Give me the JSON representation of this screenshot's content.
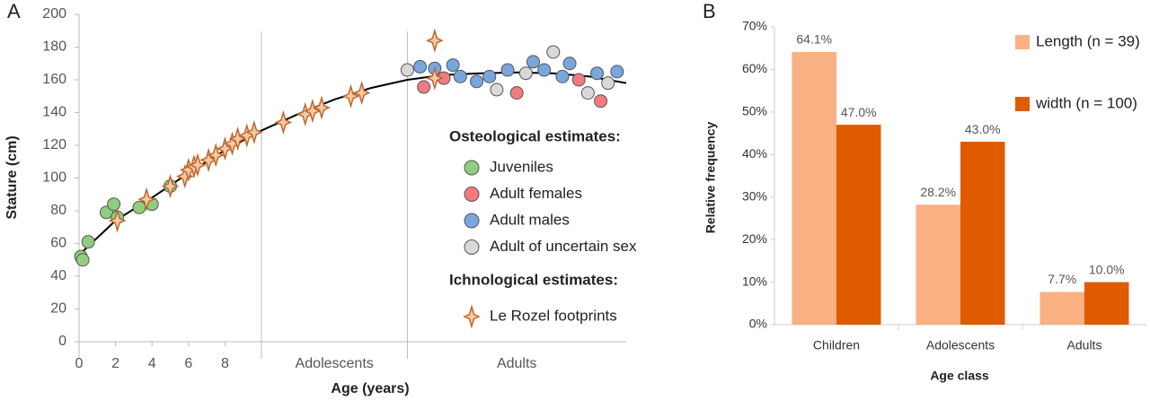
{
  "chart_data": [
    {
      "type": "scatter",
      "panel": "A",
      "xlabel": "Age (years)",
      "ylabel": "Stature (cm)",
      "xlim": [
        0,
        30
      ],
      "xticks": [
        0,
        2,
        4,
        6,
        8
      ],
      "ylim": [
        0,
        200
      ],
      "yticks": [
        0,
        20,
        40,
        60,
        80,
        100,
        120,
        140,
        160,
        180,
        200
      ],
      "regions": [
        {
          "label": "Adolescents",
          "start": 10,
          "end": 18
        },
        {
          "label": "Adults",
          "start": 18,
          "end": 30
        }
      ],
      "legend_titles": [
        "Osteological estimates:",
        "Ichnological estimates:"
      ],
      "fit": {
        "color": "#000000",
        "x": [
          0,
          2,
          4,
          6,
          8,
          10,
          12,
          14,
          16,
          18,
          20,
          22,
          24,
          26,
          28,
          30
        ],
        "values": [
          53,
          74,
          88,
          103,
          117,
          129,
          139,
          148,
          155,
          160,
          163,
          164,
          164.5,
          164,
          162,
          158
        ]
      },
      "series": [
        {
          "name": "Juveniles",
          "marker": "circle",
          "color": "#8fce7e",
          "x": [
            0.1,
            0.2,
            0.5,
            1.5,
            1.9,
            2.1,
            3.3,
            4,
            5
          ],
          "values": [
            52,
            50,
            61,
            79,
            84,
            76,
            82,
            84,
            95
          ]
        },
        {
          "name": "Adult females",
          "marker": "circle",
          "color": "#f47a7e",
          "x": [
            18.9,
            20,
            24,
            27.4,
            28.6
          ],
          "values": [
            155.6,
            161,
            152,
            160,
            147
          ]
        },
        {
          "name": "Adult males",
          "marker": "circle",
          "color": "#7aa6e0",
          "x": [
            18.7,
            19.5,
            20.5,
            20.9,
            21.8,
            22.5,
            23.5,
            24.9,
            25.5,
            26.5,
            26.9,
            28.4,
            29.5
          ],
          "values": [
            168,
            167,
            169,
            162,
            159,
            162,
            166,
            171,
            166,
            162,
            170,
            164,
            165
          ]
        },
        {
          "name": "Adult of uncertain sex",
          "marker": "circle",
          "color": "#d9d9d9",
          "x": [
            18,
            22.9,
            24.5,
            26,
            27.9,
            29
          ],
          "values": [
            166,
            154,
            164,
            177,
            152,
            158
          ]
        },
        {
          "name": "Le Rozel  footprints",
          "marker": "star",
          "color": "#c0662a",
          "x": [
            2.1,
            3.7,
            5,
            5.8,
            6,
            6.3,
            6.5,
            7.1,
            7.5,
            8,
            8.4,
            8.7,
            9.2,
            9.6,
            11.2,
            12.4,
            12.8,
            13.3,
            14.9,
            15.5,
            19.5,
            19.5
          ],
          "values": [
            74,
            87,
            95,
            101,
            105,
            107,
            108,
            111,
            114,
            118,
            121,
            124,
            126,
            128,
            134,
            139,
            141,
            143,
            150,
            152,
            184,
            161
          ]
        }
      ]
    },
    {
      "type": "bar",
      "panel": "B",
      "xlabel": "Age class",
      "ylabel": "Relative frequency",
      "legend": "top-right",
      "categories": [
        "Children",
        "Adolescents",
        "Adults"
      ],
      "ylim": [
        0,
        70
      ],
      "yticks": [
        {
          "value": 0,
          "label": "0%"
        },
        {
          "value": 10,
          "label": "10%"
        },
        {
          "value": 20,
          "label": "20%"
        },
        {
          "value": 30,
          "label": "30%"
        },
        {
          "value": 40,
          "label": "40%"
        },
        {
          "value": 50,
          "label": "50%"
        },
        {
          "value": 60,
          "label": "60%"
        },
        {
          "value": 70,
          "label": "70%"
        }
      ],
      "series": [
        {
          "name": "Length (n = 39)",
          "color": "#f9b183",
          "values": [
            64.1,
            28.2,
            7.7
          ],
          "value_labels": [
            "64.1%",
            "28.2%",
            "7.7%"
          ]
        },
        {
          "name": "width (n = 100)",
          "color": "#e05a00",
          "values": [
            47.0,
            43.0,
            10.0
          ],
          "value_labels": [
            "47.0%",
            "43.0%",
            "10.0%"
          ]
        }
      ]
    }
  ]
}
